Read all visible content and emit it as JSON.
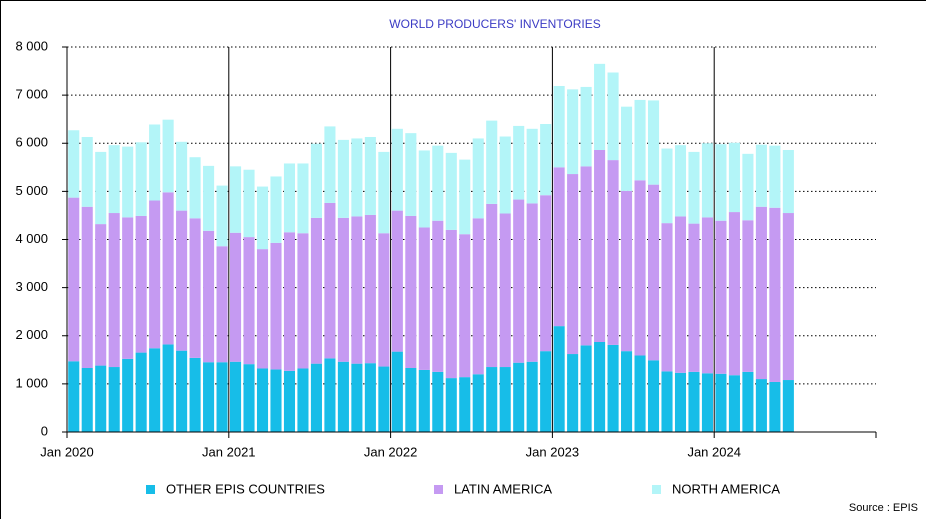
{
  "chart_data": {
    "type": "stacked_bar",
    "title": "WORLD PRODUCERS' INVENTORIES",
    "source": "Source : EPIS",
    "categories": [
      "Jan 2020",
      null,
      null,
      null,
      null,
      null,
      null,
      null,
      null,
      null,
      null,
      null,
      "Jan 2021",
      null,
      null,
      null,
      null,
      null,
      null,
      null,
      null,
      null,
      null,
      null,
      "Jan 2022",
      null,
      null,
      null,
      null,
      null,
      null,
      null,
      null,
      null,
      null,
      null,
      "Jan 2023",
      null,
      null,
      null,
      null,
      null,
      null,
      null,
      null,
      null,
      null,
      null,
      "Jan 2024",
      null,
      null,
      null,
      null,
      null,
      null,
      null,
      null,
      null,
      null,
      null
    ],
    "series": [
      {
        "name": "OTHER EPIS COUNTRIES",
        "color": "#17bde8",
        "values": [
          1470,
          1330,
          1380,
          1350,
          1520,
          1650,
          1740,
          1820,
          1690,
          1540,
          1450,
          1450,
          1460,
          1410,
          1320,
          1300,
          1270,
          1320,
          1420,
          1530,
          1460,
          1420,
          1430,
          1360,
          1670,
          1330,
          1290,
          1250,
          1120,
          1140,
          1200,
          1350,
          1350,
          1440,
          1460,
          1680,
          2200,
          1620,
          1800,
          1870,
          1810,
          1680,
          1590,
          1490,
          1260,
          1230,
          1250,
          1220,
          1210,
          1180,
          1250,
          1100,
          1040,
          1080,
          null,
          null,
          null,
          null,
          null,
          null
        ]
      },
      {
        "name": "LATIN AMERICA",
        "color": "#c59af2",
        "values": [
          3400,
          3350,
          2940,
          3200,
          2940,
          2840,
          3070,
          3160,
          2910,
          2900,
          2730,
          2410,
          2680,
          2640,
          2480,
          2630,
          2880,
          2810,
          3030,
          3230,
          2990,
          3060,
          3080,
          2770,
          2930,
          3160,
          2960,
          3140,
          3080,
          2970,
          3240,
          3390,
          3190,
          3390,
          3290,
          3240,
          3300,
          3740,
          3720,
          3990,
          3840,
          3330,
          3640,
          3650,
          3080,
          3250,
          3080,
          3240,
          3180,
          3390,
          3150,
          3580,
          3620,
          3470,
          null,
          null,
          null,
          null,
          null,
          null
        ]
      },
      {
        "name": "NORTH AMERICA",
        "color": "#b3f5f8",
        "values": [
          1400,
          1450,
          1500,
          1410,
          1470,
          1530,
          1580,
          1510,
          1430,
          1270,
          1350,
          1260,
          1380,
          1400,
          1300,
          1380,
          1430,
          1450,
          1540,
          1590,
          1620,
          1620,
          1620,
          1690,
          1700,
          1720,
          1600,
          1560,
          1600,
          1550,
          1660,
          1730,
          1600,
          1530,
          1550,
          1480,
          1690,
          1760,
          1650,
          1790,
          1820,
          1750,
          1670,
          1750,
          1550,
          1480,
          1490,
          1540,
          1590,
          1440,
          1380,
          1290,
          1290,
          1310,
          null,
          null,
          null,
          null,
          null,
          null
        ]
      }
    ],
    "ylim": [
      0,
      8000
    ],
    "yticks": [
      0,
      {
        "value": 1000,
        "label": "1 000"
      },
      {
        "value": 2000,
        "label": "2 000"
      },
      {
        "value": 3000,
        "label": "3 000"
      },
      {
        "value": 4000,
        "label": "4 000"
      },
      {
        "value": 5000,
        "label": "5 000"
      },
      {
        "value": 6000,
        "label": "6 000"
      },
      {
        "value": 7000,
        "label": "7 000"
      },
      {
        "value": 8000,
        "label": "8 000"
      }
    ],
    "grid": true
  }
}
